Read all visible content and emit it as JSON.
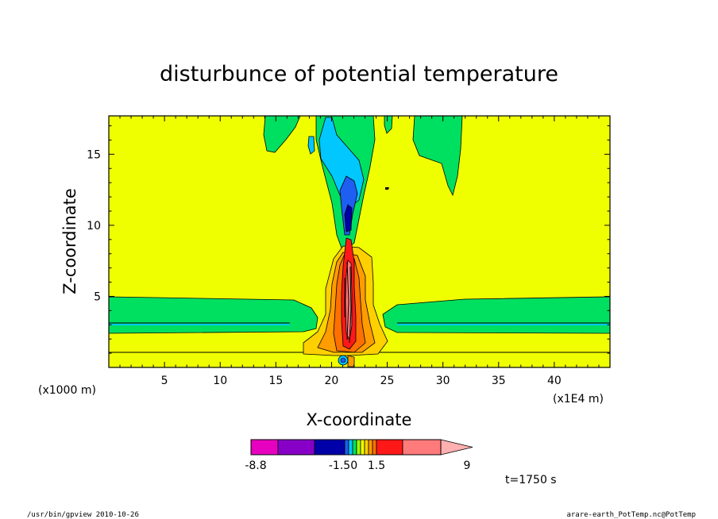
{
  "chart_data": {
    "type": "contour",
    "title": "disturbunce of potential temperature",
    "xlabel": "X-coordinate",
    "ylabel": "Z-coordinate",
    "x_unit_label": "(x1E4 m)",
    "y_unit_label": "(x1000 m)",
    "xlim": [
      0,
      45
    ],
    "ylim": [
      0,
      17.7
    ],
    "x_ticks": [
      "5",
      "10",
      "15",
      "20",
      "25",
      "30",
      "35",
      "40"
    ],
    "x_tick_values": [
      5,
      10,
      15,
      20,
      25,
      30,
      35,
      40
    ],
    "y_ticks": [
      "5",
      "10",
      "15"
    ],
    "y_tick_values": [
      5,
      10,
      15
    ],
    "background_level_color": "#f0ff00",
    "colorbar": {
      "colors": [
        "#e800c0",
        "#8800c8",
        "#0000a8",
        "#1e5ef0",
        "#00c8ff",
        "#00e060",
        "#a0ff00",
        "#f0ff00",
        "#ffd000",
        "#ff9c00",
        "#ff7000",
        "#ff1818",
        "#ff7a7a",
        "#ffb0b0"
      ],
      "tick_labels": [
        "-8.8",
        "-1.50",
        "1.5",
        "9"
      ]
    },
    "time_label": "t=1750 s"
  },
  "footer": {
    "left": "/usr/bin/gpview   2010-10-26",
    "right": "arare-earth_PotTemp.nc@PotTemp"
  }
}
